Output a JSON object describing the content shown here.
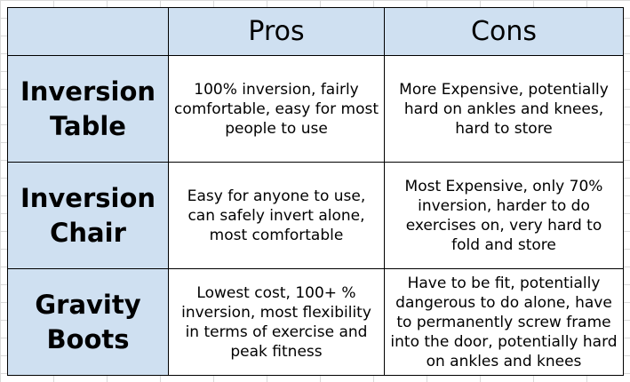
{
  "table": {
    "headers": [
      "",
      "Pros",
      "Cons"
    ],
    "rows": [
      {
        "label": "Inversion Table",
        "pros": "100% inversion, fairly comfortable, easy for most people to use",
        "cons": "More Expensive, potentially hard on ankles and knees, hard to store"
      },
      {
        "label": "Inversion Chair",
        "pros": "Easy for anyone to use, can safely invert alone, most comfortable",
        "cons": "Most Expensive, only 70% inversion, harder to do exercises on, very hard to fold and store"
      },
      {
        "label": "Gravity Boots",
        "pros": "Lowest cost, 100+ % inversion, most flexibility in terms of exercise and peak fitness",
        "cons": "Have to be fit, potentially dangerous to do alone, have to permanently screw frame into the door, potentially hard on ankles and knees"
      }
    ]
  },
  "colors": {
    "header_fill": "#cfe0f1",
    "cell_fill": "#ffffff",
    "border": "#000000",
    "gridline": "#d9d9d9"
  }
}
